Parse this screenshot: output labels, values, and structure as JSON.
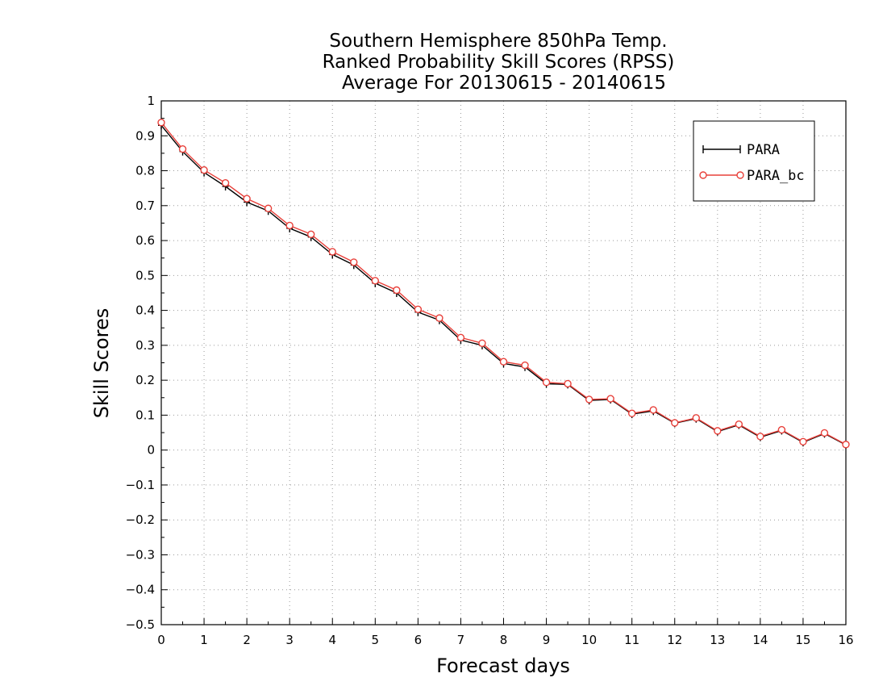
{
  "chart_data": {
    "type": "line",
    "title_lines": [
      "Southern Hemisphere 850hPa Temp.",
      "Ranked Probability Skill Scores (RPSS)",
      "Average For 20130615 - 20140615"
    ],
    "xlabel": "Forecast days",
    "ylabel": "Skill Scores",
    "xlim": [
      0,
      16
    ],
    "ylim": [
      -0.5,
      1
    ],
    "x_ticks": [
      0,
      1,
      2,
      3,
      4,
      5,
      6,
      7,
      8,
      9,
      10,
      11,
      12,
      13,
      14,
      15,
      16
    ],
    "x_tick_labels": [
      "0",
      "1",
      "2",
      "3",
      "4",
      "5",
      "6",
      "7",
      "8",
      "9",
      "10",
      "11",
      "12",
      "13",
      "14",
      "15",
      "16"
    ],
    "y_ticks": [
      -0.5,
      -0.4,
      -0.3,
      -0.2,
      -0.1,
      0,
      0.1,
      0.2,
      0.3,
      0.4,
      0.5,
      0.6,
      0.7,
      0.8,
      0.9,
      1
    ],
    "y_tick_labels": [
      "−0.5",
      "−0.4",
      "−0.3",
      "−0.2",
      "−0.1",
      "0",
      "0.1",
      "0.2",
      "0.3",
      "0.4",
      "0.5",
      "0.6",
      "0.7",
      "0.8",
      "0.9",
      "1"
    ],
    "grid": true,
    "legend_position": "top-right",
    "x": [
      0,
      0.5,
      1,
      1.5,
      2,
      2.5,
      3,
      3.5,
      4,
      4.5,
      5,
      5.5,
      6,
      6.5,
      7,
      7.5,
      8,
      8.5,
      9,
      9.5,
      10,
      10.5,
      11,
      11.5,
      12,
      12.5,
      13,
      13.5,
      14,
      14.5,
      15,
      15.5,
      16
    ],
    "series": [
      {
        "name": "PARA",
        "color": "#000000",
        "marker": "plus",
        "values": [
          0.93,
          0.855,
          0.795,
          0.755,
          0.71,
          0.685,
          0.635,
          0.61,
          0.56,
          0.53,
          0.478,
          0.45,
          0.395,
          0.372,
          0.315,
          0.3,
          0.248,
          0.238,
          0.19,
          0.188,
          0.142,
          0.145,
          0.103,
          0.112,
          0.077,
          0.09,
          0.053,
          0.072,
          0.037,
          0.056,
          0.022,
          0.047,
          0.015
        ]
      },
      {
        "name": "PARA_bc",
        "color": "#e8403a",
        "marker": "circle",
        "values": [
          0.938,
          0.862,
          0.802,
          0.765,
          0.72,
          0.692,
          0.643,
          0.618,
          0.568,
          0.538,
          0.485,
          0.458,
          0.403,
          0.378,
          0.322,
          0.306,
          0.253,
          0.243,
          0.194,
          0.19,
          0.145,
          0.147,
          0.105,
          0.115,
          0.078,
          0.092,
          0.055,
          0.074,
          0.039,
          0.058,
          0.024,
          0.049,
          0.016
        ]
      }
    ]
  }
}
